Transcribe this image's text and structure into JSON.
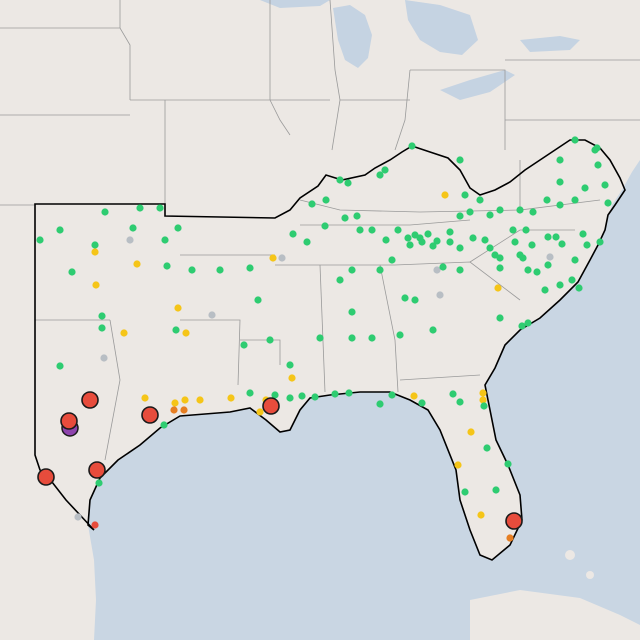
{
  "map": {
    "colors": {
      "ocean": "#c9d6e3",
      "land": "#ece8e4",
      "land_border": "#9a9a9a",
      "region_outline": "#000000",
      "lake": "#c5d3e2",
      "green": "#2ecc71",
      "yellow": "#f5c518",
      "orange": "#e67e22",
      "red": "#e74c3c",
      "gray": "#b8bec4",
      "purple": "#8e44ad",
      "marker_stroke": "#1a1a1a"
    },
    "markers": {
      "large": [
        {
          "label": "south-texas-1",
          "color": "red"
        },
        {
          "label": "south-texas-2",
          "color": "red"
        },
        {
          "label": "south-texas-3",
          "color": "red"
        },
        {
          "label": "south-texas-4",
          "color": "red"
        },
        {
          "label": "houston",
          "color": "red"
        },
        {
          "label": "new-orleans",
          "color": "red"
        },
        {
          "label": "miami",
          "color": "red"
        }
      ]
    }
  }
}
